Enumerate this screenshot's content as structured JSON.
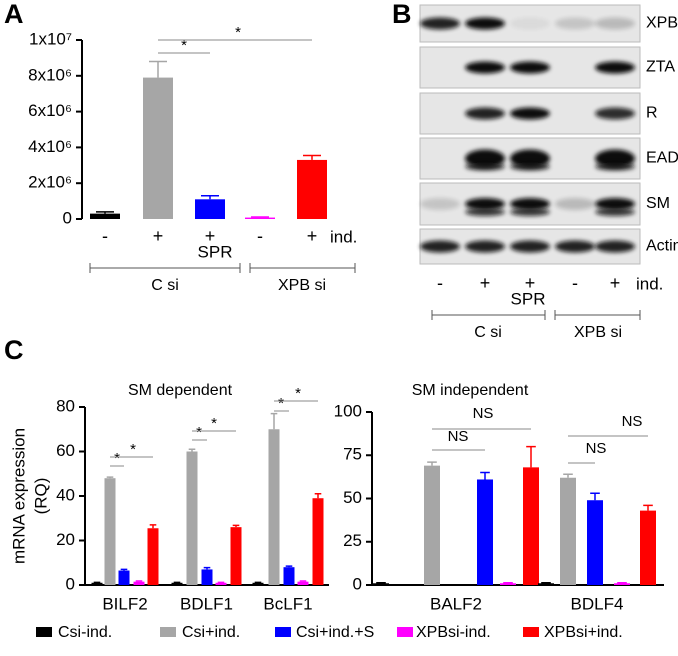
{
  "panel_labels": [
    "A",
    "B",
    "C"
  ],
  "chart_data": [
    {
      "type": "bar",
      "categories": [
        "-",
        "+",
        "+",
        "-",
        "+"
      ],
      "category_label": "ind.",
      "treatment": "SPR",
      "group_labels": [
        "C si",
        "XPB si"
      ],
      "values": [
        300000,
        7900000,
        1100000,
        80000,
        3300000
      ],
      "errors": [
        100000,
        900000,
        200000,
        30000,
        250000
      ],
      "colors": [
        "#000000",
        "#a6a6a6",
        "#0000ff",
        "#ff00ff",
        "#ff0000"
      ],
      "ylim": [
        0,
        10000000
      ],
      "yticks": [
        0,
        {
          "value": 2000000,
          "label": "2x10⁶"
        },
        {
          "value": 4000000,
          "label": "4x10⁶"
        },
        {
          "value": 6000000,
          "label": "6x10⁶"
        },
        {
          "value": 8000000,
          "label": "8x10⁶"
        },
        {
          "value": 10000000,
          "label": "1x10⁷"
        }
      ],
      "annotations": [
        "*",
        "*"
      ]
    },
    {
      "type": "grouped_bar",
      "title": "SM dependent",
      "ylabel": [
        "mRNA expression",
        "(RQ)"
      ],
      "categories": [
        "BILF2",
        "BDLF1",
        "BcLF1"
      ],
      "series": [
        {
          "name": "Csi-ind.",
          "color": "#000000",
          "values": [
            1,
            1,
            1
          ],
          "errors": [
            0.2,
            0.2,
            0.2
          ]
        },
        {
          "name": "Csi+ind.",
          "color": "#a6a6a6",
          "values": [
            48,
            60,
            70
          ],
          "errors": [
            0.5,
            1,
            7
          ]
        },
        {
          "name": "Csi+ind.+S",
          "color": "#0000ff",
          "values": [
            6.5,
            7,
            8
          ],
          "errors": [
            0.5,
            0.8,
            0.5
          ]
        },
        {
          "name": "XPBsi-ind.",
          "color": "#ff00ff",
          "values": [
            1.5,
            1,
            1.5
          ],
          "errors": [
            0.3,
            0.2,
            0.3
          ]
        },
        {
          "name": "XPBsi+ind.",
          "color": "#ff0000",
          "values": [
            25.5,
            26,
            39
          ],
          "errors": [
            1.5,
            0.8,
            2
          ]
        }
      ],
      "ylim": [
        0,
        80
      ],
      "yticks": [
        0,
        20,
        40,
        60,
        80
      ],
      "annotations": [
        "*",
        "*",
        "*",
        "*",
        "*",
        "*"
      ]
    },
    {
      "type": "grouped_bar",
      "title": "SM independent",
      "categories": [
        "BALF2",
        "BDLF4"
      ],
      "series": [
        {
          "name": "Csi-ind.",
          "color": "#000000",
          "values": [
            1,
            1
          ],
          "errors": [
            0.3,
            0.3
          ]
        },
        {
          "name": "Csi+ind.",
          "color": "#a6a6a6",
          "values": [
            69,
            62
          ],
          "errors": [
            2,
            2
          ]
        },
        {
          "name": "Csi+ind.+S",
          "color": "#0000ff",
          "values": [
            61,
            49
          ],
          "errors": [
            4,
            4
          ]
        },
        {
          "name": "XPBsi-ind.",
          "color": "#ff00ff",
          "values": [
            1,
            1
          ],
          "errors": [
            0.3,
            0.3
          ]
        },
        {
          "name": "XPBsi+ind.",
          "color": "#ff0000",
          "values": [
            68,
            43
          ],
          "errors": [
            12,
            3
          ]
        }
      ],
      "ylim": [
        0,
        100
      ],
      "yticks": [
        0,
        25,
        50,
        75,
        100
      ],
      "annotations": [
        "NS",
        "NS",
        "NS",
        "NS"
      ]
    }
  ],
  "blot": {
    "rows": [
      "XPB",
      "ZTA",
      "R",
      "EAD",
      "SM",
      "Actin"
    ],
    "lanes": [
      "-",
      "+",
      "+",
      "-",
      "+"
    ],
    "lane_label": "ind.",
    "treatment": "SPR",
    "group_labels": [
      "C si",
      "XPB si"
    ]
  }
}
